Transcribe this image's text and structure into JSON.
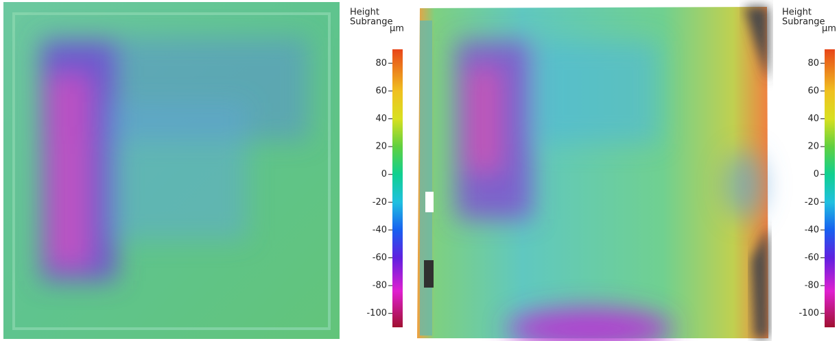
{
  "panels": [
    {
      "colorbar": {
        "title_lines": [
          "Height",
          "Subrange"
        ],
        "unit": "µm",
        "range": [
          -110,
          90
        ],
        "ticks": [
          80,
          60,
          40,
          20,
          0,
          -20,
          -40,
          -60,
          -80,
          -100
        ]
      }
    },
    {
      "colorbar": {
        "title_lines": [
          "Height",
          "Subrange"
        ],
        "unit": "µm",
        "range": [
          -110,
          90
        ],
        "ticks": [
          80,
          60,
          40,
          20,
          0,
          -20,
          -40,
          -60,
          -80,
          -100
        ]
      }
    }
  ]
}
